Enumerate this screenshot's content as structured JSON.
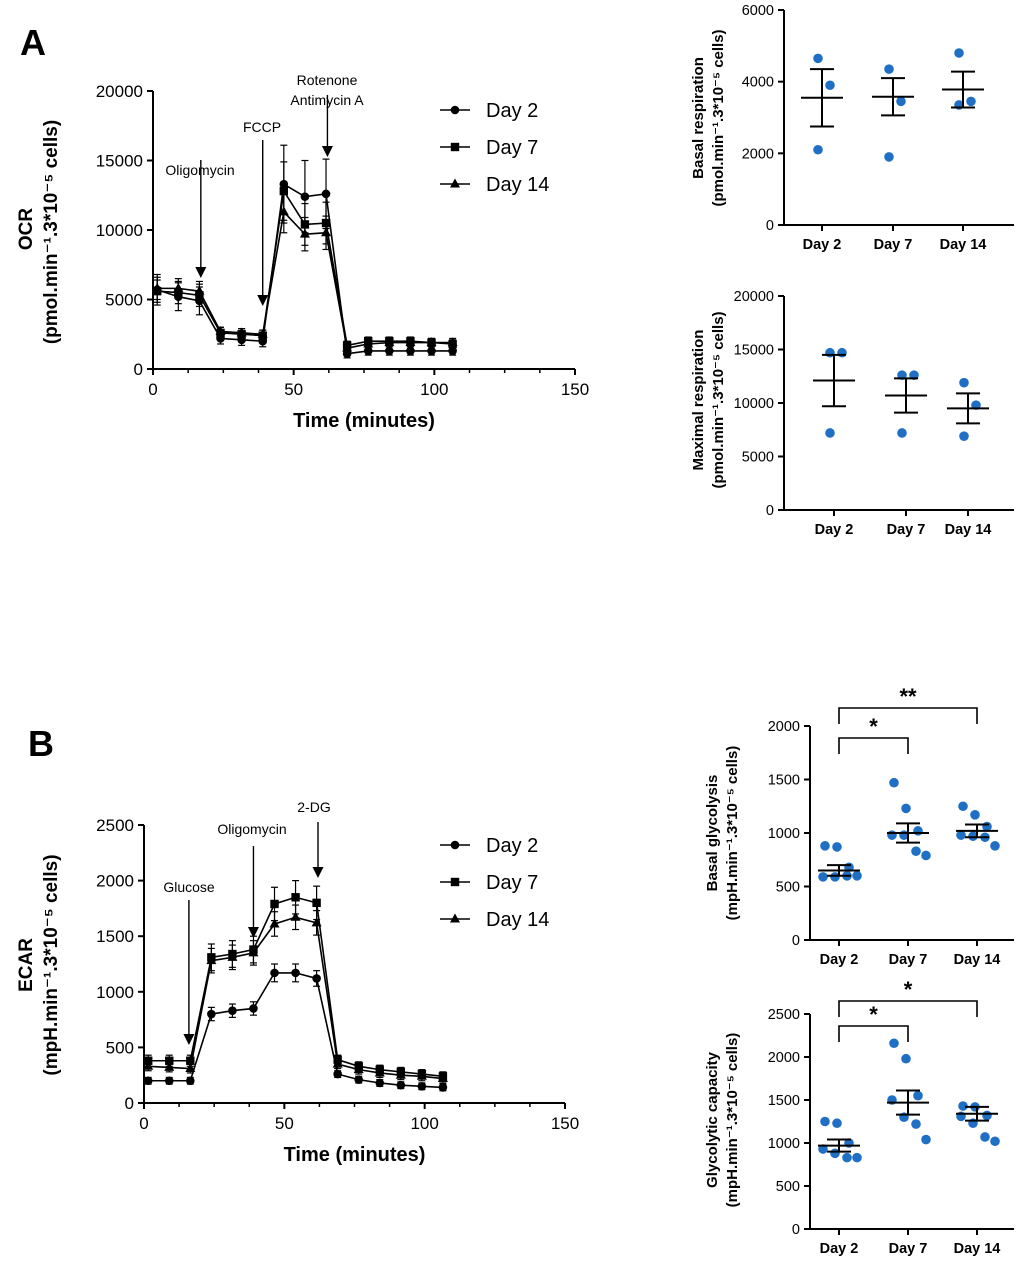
{
  "panels": {
    "A": "A",
    "B": "B"
  },
  "chart_data": [
    {
      "id": "ocr",
      "type": "line",
      "ylabel_main": "OCR",
      "ylabel_unit": "(pmol.min⁻¹.3*10⁻⁵ cells)",
      "xlabel": "Time (minutes)",
      "xlim": [
        0,
        150
      ],
      "ylim": [
        0,
        20000
      ],
      "xticks": [
        "0",
        "50",
        "100",
        "150"
      ],
      "yticks": [
        "0",
        "5000",
        "10000",
        "15000",
        "20000"
      ],
      "x": [
        1.5,
        9,
        16.5,
        24,
        31.5,
        39,
        46.5,
        54,
        61.5,
        69,
        76.5,
        84,
        91.5,
        99,
        106.5
      ],
      "series": [
        {
          "name": "Day 2",
          "marker": "circle",
          "values": [
            5700,
            5200,
            4900,
            2200,
            2100,
            2000,
            13300,
            12400,
            12600,
            1100,
            1300,
            1300,
            1300,
            1300,
            1300
          ],
          "errors": [
            1100,
            1000,
            1000,
            400,
            400,
            400,
            2800,
            2600,
            2500,
            300,
            300,
            300,
            300,
            300,
            300
          ]
        },
        {
          "name": "Day 7",
          "marker": "square",
          "values": [
            5600,
            5500,
            5300,
            2600,
            2500,
            2400,
            12800,
            10400,
            10500,
            1700,
            2000,
            2000,
            2000,
            1900,
            1800
          ],
          "errors": [
            800,
            800,
            800,
            400,
            400,
            400,
            2100,
            1500,
            1500,
            300,
            300,
            300,
            300,
            300,
            300
          ]
        },
        {
          "name": "Day 14",
          "marker": "triangle",
          "values": [
            5800,
            5800,
            5600,
            2700,
            2600,
            2500,
            11300,
            9700,
            9800,
            1500,
            1800,
            1900,
            1900,
            1900,
            1900
          ],
          "errors": [
            800,
            700,
            700,
            300,
            300,
            300,
            1500,
            1200,
            1200,
            300,
            300,
            300,
            300,
            300,
            300
          ]
        }
      ],
      "annotations": [
        {
          "label": "Oligomycin",
          "x": 17
        },
        {
          "label": "FCCP",
          "x": 39
        },
        {
          "label": "Rotenone\nAntimycin A",
          "x": 62
        }
      ]
    },
    {
      "id": "basal-resp",
      "type": "scatter",
      "ylabel": "Basal respiration",
      "ylabel_unit": "(pmol.min⁻¹.3*10⁻⁵ cells)",
      "categories": [
        "Day 2",
        "Day 7",
        "Day 14"
      ],
      "ylim": [
        0,
        6000
      ],
      "yticks": [
        "0",
        "2000",
        "4000",
        "6000"
      ],
      "points": [
        [
          4650,
          3900,
          2100
        ],
        [
          4350,
          3450,
          1900
        ],
        [
          4800,
          3450,
          3350
        ]
      ],
      "mean": [
        3550,
        3580,
        3780
      ],
      "sem": [
        800,
        520,
        500
      ]
    },
    {
      "id": "max-resp",
      "type": "scatter",
      "ylabel": "Maximal respiration",
      "ylabel_unit": "(pmol.min⁻¹.3*10⁻⁵ cells)",
      "categories": [
        "Day 2",
        "Day 7",
        "Day 14"
      ],
      "ylim": [
        0,
        20000
      ],
      "yticks": [
        "0",
        "5000",
        "10000",
        "15000",
        "20000"
      ],
      "points": [
        [
          14700,
          14700,
          7200
        ],
        [
          12600,
          12600,
          7200
        ],
        [
          11900,
          9800,
          6900
        ]
      ],
      "mean": [
        12100,
        10700,
        9500
      ],
      "sem": [
        2400,
        1600,
        1400
      ]
    },
    {
      "id": "ecar",
      "type": "line",
      "ylabel_main": "ECAR",
      "ylabel_unit": "(mpH.min⁻¹.3*10⁻⁵ cells)",
      "xlabel": "Time (minutes)",
      "xlim": [
        0,
        150
      ],
      "ylim": [
        0,
        2500
      ],
      "xticks": [
        "0",
        "50",
        "100",
        "150"
      ],
      "yticks": [
        "0",
        "500",
        "1000",
        "1500",
        "2000",
        "2500"
      ],
      "x": [
        1.5,
        9,
        16.5,
        24,
        31.5,
        39,
        46.5,
        54,
        61.5,
        69,
        76.5,
        84,
        91.5,
        99,
        106.5
      ],
      "series": [
        {
          "name": "Day 2",
          "marker": "circle",
          "values": [
            200,
            200,
            200,
            800,
            830,
            850,
            1170,
            1170,
            1120,
            260,
            210,
            180,
            160,
            150,
            140
          ],
          "errors": [
            30,
            30,
            30,
            60,
            60,
            60,
            80,
            80,
            70,
            30,
            30,
            30,
            30,
            30,
            30
          ]
        },
        {
          "name": "Day 7",
          "marker": "square",
          "values": [
            380,
            380,
            380,
            1310,
            1340,
            1380,
            1790,
            1850,
            1800,
            390,
            330,
            300,
            280,
            260,
            240
          ],
          "errors": [
            50,
            50,
            50,
            120,
            120,
            120,
            150,
            150,
            150,
            40,
            40,
            40,
            40,
            40,
            40
          ]
        },
        {
          "name": "Day 14",
          "marker": "triangle",
          "values": [
            330,
            320,
            310,
            1280,
            1310,
            1350,
            1610,
            1670,
            1620,
            350,
            300,
            270,
            250,
            240,
            220
          ],
          "errors": [
            40,
            40,
            40,
            110,
            110,
            110,
            110,
            110,
            110,
            40,
            40,
            40,
            40,
            40,
            40
          ]
        }
      ],
      "annotations": [
        {
          "label": "Glucose",
          "x": 16
        },
        {
          "label": "Oligomycin",
          "x": 39
        },
        {
          "label": "2-DG",
          "x": 62
        }
      ]
    },
    {
      "id": "basal-glyc",
      "type": "scatter",
      "ylabel": "Basal glycolysis",
      "ylabel_unit": "(mpH.min⁻¹.3*10⁻⁵ cells)",
      "categories": [
        "Day 2",
        "Day 7",
        "Day 14"
      ],
      "ylim": [
        0,
        2000
      ],
      "yticks": [
        "0",
        "500",
        "1000",
        "1500",
        "2000"
      ],
      "points": [
        [
          880,
          870,
          680,
          590,
          590,
          600,
          600
        ],
        [
          1470,
          1230,
          1020,
          980,
          980,
          830,
          790
        ],
        [
          1250,
          1170,
          1060,
          980,
          970,
          960,
          880
        ]
      ],
      "mean": [
        650,
        1000,
        1020
      ],
      "sem": [
        50,
        90,
        60
      ],
      "sig": [
        {
          "from": 0,
          "to": 1,
          "label": "*"
        },
        {
          "from": 0,
          "to": 2,
          "label": "**"
        }
      ]
    },
    {
      "id": "glyc-cap",
      "type": "scatter",
      "ylabel": "Glycolytic capacity",
      "ylabel_unit": "(mpH.min⁻¹.3*10⁻⁵ cells)",
      "categories": [
        "Day 2",
        "Day 7",
        "Day 14"
      ],
      "ylim": [
        0,
        2500
      ],
      "yticks": [
        "0",
        "500",
        "1000",
        "1500",
        "2000",
        "2500"
      ],
      "points": [
        [
          1250,
          1230,
          1000,
          930,
          880,
          830,
          830
        ],
        [
          2160,
          1980,
          1550,
          1500,
          1300,
          1220,
          1040
        ],
        [
          1430,
          1420,
          1320,
          1310,
          1230,
          1070,
          1020
        ]
      ],
      "mean": [
        970,
        1470,
        1340
      ],
      "sem": [
        70,
        140,
        80
      ],
      "sig": [
        {
          "from": 0,
          "to": 1,
          "label": "*"
        },
        {
          "from": 0,
          "to": 2,
          "label": "*"
        }
      ]
    }
  ]
}
